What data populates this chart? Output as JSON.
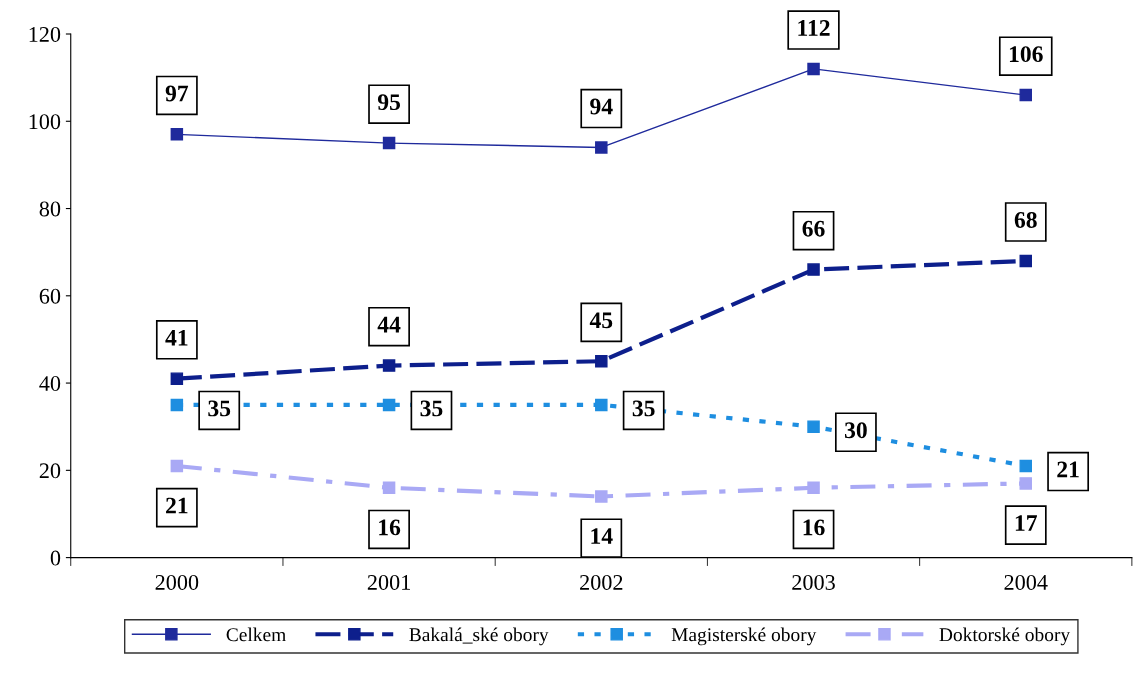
{
  "chart_data": {
    "type": "line",
    "categories": [
      "2000",
      "2001",
      "2002",
      "2003",
      "2004"
    ],
    "series": [
      {
        "name": "Celkem",
        "color": "#1f2a9c",
        "line_style": "solid",
        "values": [
          97,
          95,
          94,
          112,
          106
        ]
      },
      {
        "name": "Bakalá_ské obory",
        "color": "#0d1f8c",
        "line_style": "dashed",
        "values": [
          41,
          44,
          45,
          66,
          68
        ]
      },
      {
        "name": "Magisterské obory",
        "color": "#1e8ee0",
        "line_style": "dotted",
        "values": [
          35,
          35,
          35,
          30,
          21
        ]
      },
      {
        "name": "Doktorské obory",
        "color": "#a9a9f5",
        "line_style": "dashdot",
        "values": [
          21,
          16,
          14,
          16,
          17
        ]
      }
    ],
    "ylim": [
      0,
      120
    ],
    "yticks": [
      0,
      20,
      40,
      60,
      80,
      100,
      120
    ],
    "marker": "square",
    "data_labels": true,
    "grid": false,
    "legend": "bottom"
  }
}
